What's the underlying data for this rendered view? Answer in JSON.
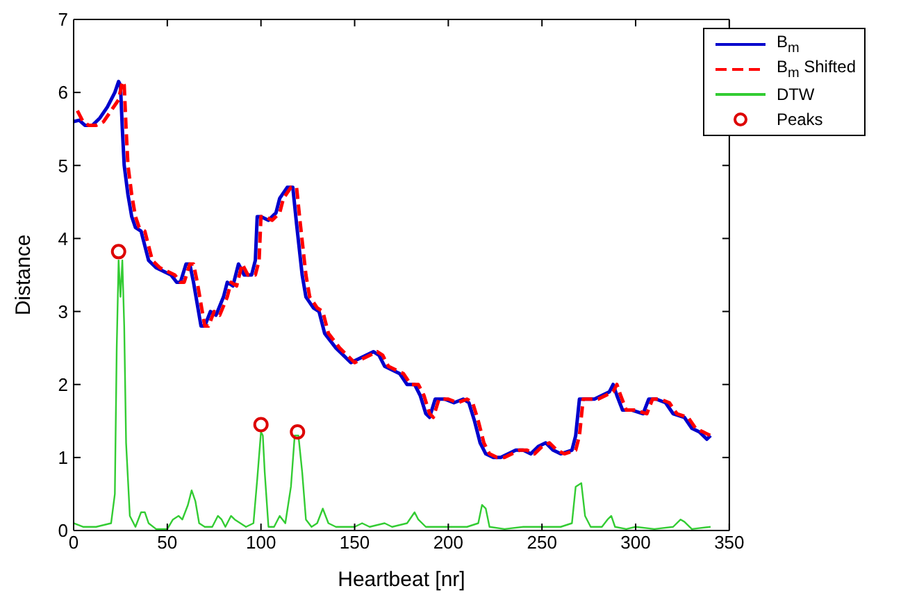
{
  "chart_data": {
    "type": "line",
    "xlabel": "Heartbeat [nr]",
    "ylabel": "Distance",
    "xlim": [
      0,
      350
    ],
    "xticks": [
      0,
      50,
      100,
      150,
      200,
      250,
      300,
      350
    ],
    "ylim": [
      0,
      7
    ],
    "yticks": [
      0,
      1,
      2,
      3,
      4,
      5,
      6,
      7
    ],
    "legend": "top right",
    "grid": false,
    "series": [
      {
        "name": "B$_{m}$",
        "color": "#0000cc",
        "line_style": "solid",
        "marker": "none",
        "x": [
          0,
          3,
          6,
          10,
          14,
          18,
          22,
          24,
          25,
          26,
          27,
          29,
          31,
          33,
          36,
          38,
          40,
          44,
          48,
          52,
          55,
          57,
          60,
          62,
          64,
          66,
          68,
          70,
          73,
          76,
          80,
          82,
          85,
          88,
          91,
          95,
          97,
          98,
          100,
          104,
          108,
          110,
          114,
          117,
          119,
          122,
          124,
          128,
          131,
          134,
          137,
          140,
          144,
          148,
          152,
          156,
          160,
          163,
          166,
          170,
          174,
          178,
          182,
          185,
          188,
          190,
          193,
          198,
          203,
          208,
          211,
          214,
          217,
          220,
          224,
          228,
          232,
          236,
          240,
          244,
          248,
          252,
          256,
          260,
          266,
          268,
          270,
          274,
          278,
          282,
          286,
          288,
          290,
          293,
          298,
          304,
          307,
          311,
          316,
          320,
          326,
          330,
          334,
          338,
          340
        ],
        "values": [
          5.6,
          5.62,
          5.55,
          5.55,
          5.65,
          5.8,
          6.0,
          6.15,
          6.1,
          5.5,
          5.0,
          4.6,
          4.3,
          4.15,
          4.1,
          3.9,
          3.7,
          3.6,
          3.55,
          3.5,
          3.4,
          3.4,
          3.65,
          3.65,
          3.4,
          3.1,
          2.8,
          2.8,
          3.0,
          2.95,
          3.2,
          3.4,
          3.35,
          3.65,
          3.5,
          3.5,
          3.7,
          4.3,
          4.3,
          4.25,
          4.35,
          4.55,
          4.7,
          4.7,
          4.2,
          3.5,
          3.2,
          3.05,
          3.0,
          2.7,
          2.6,
          2.5,
          2.4,
          2.3,
          2.35,
          2.4,
          2.45,
          2.4,
          2.25,
          2.2,
          2.15,
          2.0,
          2.0,
          1.85,
          1.6,
          1.55,
          1.8,
          1.8,
          1.75,
          1.8,
          1.75,
          1.5,
          1.2,
          1.05,
          1.0,
          1.0,
          1.05,
          1.1,
          1.1,
          1.05,
          1.15,
          1.2,
          1.1,
          1.05,
          1.1,
          1.3,
          1.8,
          1.8,
          1.8,
          1.85,
          1.9,
          2.0,
          1.85,
          1.65,
          1.65,
          1.6,
          1.8,
          1.8,
          1.75,
          1.6,
          1.55,
          1.4,
          1.35,
          1.25,
          1.3
        ]
      },
      {
        "name": "B$_{m}$ Shifted",
        "color": "#ff0000",
        "line_style": "dashed",
        "marker": "none",
        "x": [
          2,
          5,
          8,
          12,
          16,
          20,
          24,
          26,
          27,
          28,
          29,
          31,
          33,
          35,
          38,
          40,
          42,
          46,
          50,
          54,
          57,
          59,
          62,
          64,
          66,
          68,
          70,
          72,
          75,
          78,
          82,
          84,
          87,
          90,
          93,
          97,
          99,
          100,
          102,
          106,
          110,
          112,
          116,
          119,
          121,
          124,
          126,
          130,
          133,
          136,
          139,
          142,
          146,
          150,
          154,
          158,
          162,
          165,
          168,
          172,
          176,
          180,
          184,
          187,
          190,
          192,
          195,
          200,
          205,
          210,
          213,
          216,
          219,
          222,
          226,
          230,
          234,
          238,
          242,
          246,
          250,
          254,
          258,
          262,
          268,
          270,
          272,
          276,
          280,
          284,
          288,
          290,
          292,
          295,
          300,
          306,
          309,
          313,
          318,
          322,
          328,
          332,
          336,
          340,
          342
        ],
        "values": [
          5.75,
          5.6,
          5.55,
          5.55,
          5.6,
          5.75,
          5.9,
          6.15,
          6.1,
          5.5,
          5.0,
          4.6,
          4.3,
          4.15,
          4.1,
          3.9,
          3.7,
          3.6,
          3.55,
          3.5,
          3.4,
          3.4,
          3.65,
          3.65,
          3.4,
          3.1,
          2.8,
          2.8,
          3.0,
          2.95,
          3.2,
          3.4,
          3.35,
          3.65,
          3.5,
          3.5,
          3.7,
          4.3,
          4.3,
          4.25,
          4.35,
          4.55,
          4.7,
          4.7,
          4.2,
          3.5,
          3.2,
          3.05,
          3.0,
          2.7,
          2.6,
          2.5,
          2.4,
          2.3,
          2.35,
          2.4,
          2.45,
          2.4,
          2.25,
          2.2,
          2.15,
          2.0,
          2.0,
          1.85,
          1.6,
          1.55,
          1.8,
          1.8,
          1.75,
          1.8,
          1.75,
          1.5,
          1.2,
          1.05,
          1.0,
          1.0,
          1.05,
          1.1,
          1.1,
          1.05,
          1.15,
          1.2,
          1.1,
          1.05,
          1.1,
          1.3,
          1.8,
          1.8,
          1.8,
          1.85,
          1.9,
          2.0,
          1.85,
          1.65,
          1.65,
          1.6,
          1.8,
          1.8,
          1.75,
          1.6,
          1.55,
          1.4,
          1.35,
          1.3,
          1.3
        ]
      },
      {
        "name": "DTW",
        "color": "#33cc33",
        "line_style": "solid",
        "marker": "none",
        "x": [
          0,
          5,
          12,
          20,
          22,
          23,
          24,
          25,
          26,
          27,
          28,
          30,
          33,
          36,
          38,
          40,
          44,
          50,
          53,
          56,
          58,
          61,
          63,
          65,
          67,
          70,
          74,
          77,
          79,
          81,
          84,
          86,
          89,
          92,
          96,
          98,
          100,
          101,
          102,
          104,
          107,
          110,
          113,
          116,
          118,
          120,
          122,
          124,
          127,
          130,
          133,
          136,
          140,
          150,
          154,
          158,
          166,
          170,
          178,
          182,
          184,
          188,
          196,
          210,
          216,
          218,
          220,
          222,
          230,
          240,
          250,
          260,
          266,
          268,
          271,
          273,
          276,
          282,
          285,
          287,
          289,
          295,
          300,
          310,
          320,
          324,
          326,
          330,
          340
        ],
        "values": [
          0.1,
          0.05,
          0.05,
          0.1,
          0.5,
          2.5,
          3.7,
          3.2,
          3.7,
          2.8,
          1.2,
          0.2,
          0.05,
          0.25,
          0.25,
          0.1,
          0.02,
          0.02,
          0.15,
          0.2,
          0.15,
          0.35,
          0.55,
          0.4,
          0.1,
          0.05,
          0.05,
          0.2,
          0.15,
          0.05,
          0.2,
          0.15,
          0.1,
          0.05,
          0.1,
          0.7,
          1.35,
          1.3,
          0.8,
          0.05,
          0.05,
          0.2,
          0.1,
          0.6,
          1.3,
          1.3,
          0.8,
          0.15,
          0.05,
          0.1,
          0.3,
          0.1,
          0.05,
          0.05,
          0.1,
          0.05,
          0.1,
          0.05,
          0.1,
          0.25,
          0.15,
          0.05,
          0.05,
          0.05,
          0.1,
          0.35,
          0.3,
          0.05,
          0.02,
          0.05,
          0.05,
          0.05,
          0.1,
          0.6,
          0.65,
          0.2,
          0.05,
          0.05,
          0.15,
          0.2,
          0.05,
          0.02,
          0.05,
          0.02,
          0.05,
          0.15,
          0.12,
          0.02,
          0.05
        ]
      },
      {
        "name": "Peaks",
        "type": "scatter",
        "color": "#dd0000",
        "marker": "circle",
        "x": [
          24,
          100,
          119.5
        ],
        "values": [
          3.82,
          1.45,
          1.35
        ]
      }
    ]
  }
}
